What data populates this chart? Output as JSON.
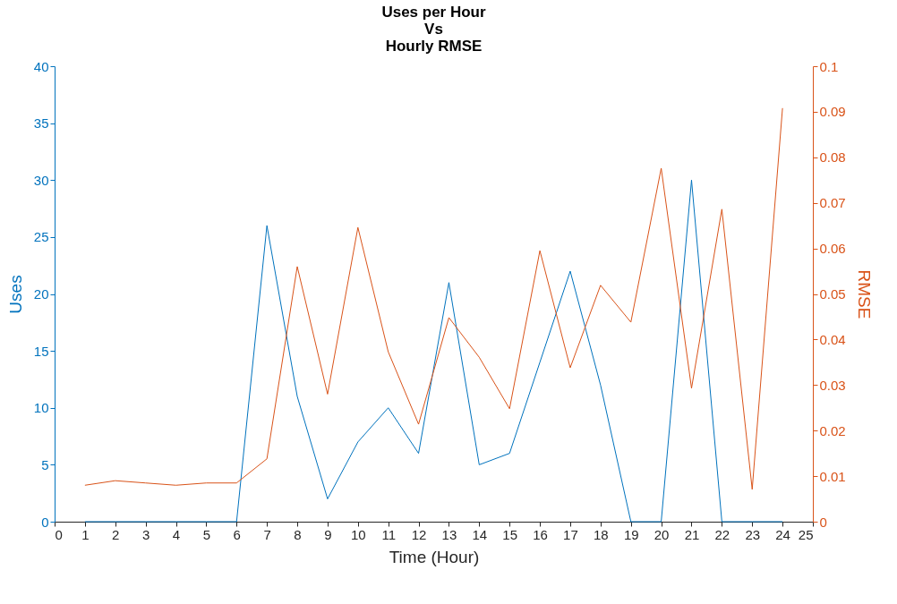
{
  "chart_data": {
    "type": "line",
    "title": "Uses per Hour\nVs\nHourly RMSE",
    "xlabel": "Time (Hour)",
    "ylabel": "Uses",
    "y2label": "RMSE",
    "x": [
      1,
      2,
      3,
      4,
      5,
      6,
      7,
      8,
      9,
      10,
      11,
      12,
      13,
      14,
      15,
      16,
      17,
      18,
      19,
      20,
      21,
      22,
      23,
      24
    ],
    "series": [
      {
        "color": "#0072bd",
        "values": [
          0,
          0,
          0,
          0,
          0,
          0,
          26,
          11,
          2,
          7,
          10,
          6,
          21,
          5,
          6,
          14,
          22,
          12,
          0,
          0,
          30,
          0,
          0,
          0
        ]
      },
      {
        "color": "#d95319",
        "axis": "y2",
        "values": [
          0.008,
          0.009,
          0.0085,
          0.008,
          0.0085,
          0.0085,
          0.0138,
          0.056,
          0.028,
          0.0646,
          0.0373,
          0.0214,
          0.0448,
          0.0361,
          0.0248,
          0.0595,
          0.0338,
          0.0519,
          0.0438,
          0.0776,
          0.0293,
          0.0686,
          0.0071,
          0.0908
        ]
      }
    ],
    "xlim": [
      0,
      25
    ],
    "xticks": [
      0,
      1,
      2,
      3,
      4,
      5,
      6,
      7,
      8,
      9,
      10,
      11,
      12,
      13,
      14,
      15,
      16,
      17,
      18,
      19,
      20,
      21,
      22,
      23,
      24,
      25
    ],
    "ylim": [
      0,
      40
    ],
    "yticks": [
      0,
      5,
      10,
      15,
      20,
      25,
      30,
      35,
      40
    ],
    "y2lim": [
      0,
      0.1
    ],
    "y2ticks": [
      0,
      0.01,
      0.02,
      0.03,
      0.04,
      0.05,
      0.06,
      0.07,
      0.08,
      0.09,
      0.1
    ],
    "grid": false,
    "marker": "none",
    "line_style": "solid"
  }
}
